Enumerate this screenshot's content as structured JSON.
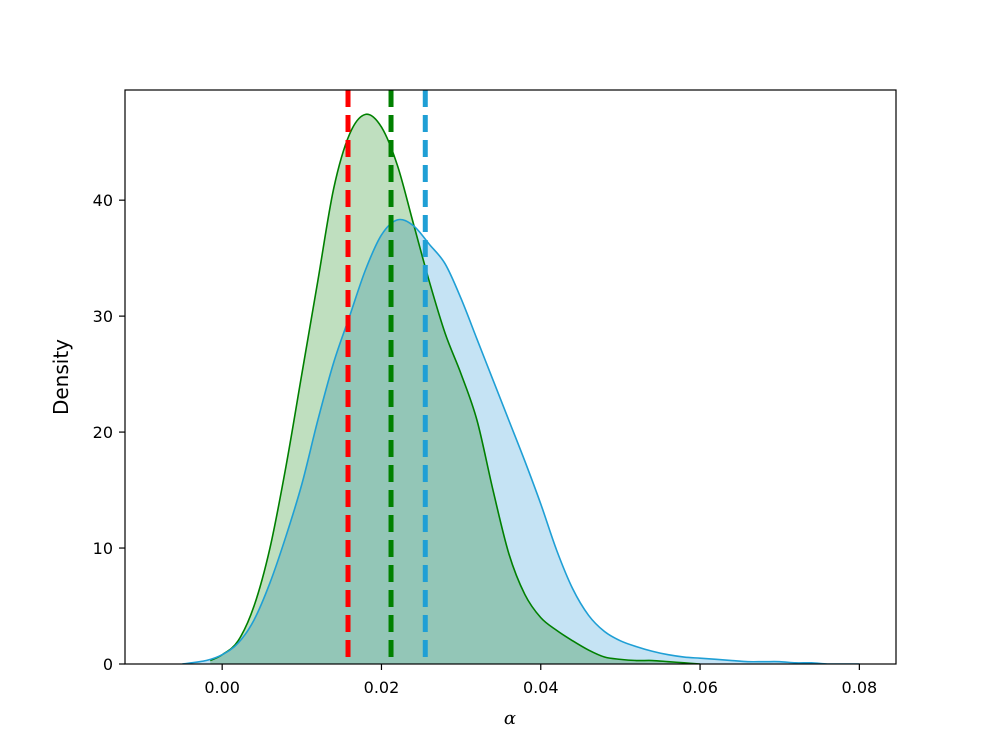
{
  "chart_data": {
    "type": "area",
    "title": "",
    "xlabel": "α",
    "ylabel": "Density",
    "xlim": [
      -0.0122,
      0.0846
    ],
    "ylim": [
      0,
      49.5
    ],
    "grid": false,
    "legend": "none",
    "xticks": [
      0.0,
      0.02,
      0.04,
      0.06,
      0.08
    ],
    "xtick_labels": [
      "0.00",
      "0.02",
      "0.04",
      "0.06",
      "0.08"
    ],
    "yticks": [
      0,
      10,
      20,
      30,
      40
    ],
    "ytick_labels": [
      "0",
      "10",
      "20",
      "30",
      "40"
    ],
    "series": [
      {
        "color": "#008000",
        "fill": "#bfdfbf",
        "x": [
          -0.0015,
          0.0,
          0.002,
          0.004,
          0.006,
          0.008,
          0.01,
          0.012,
          0.014,
          0.016,
          0.018,
          0.02,
          0.022,
          0.024,
          0.026,
          0.028,
          0.03,
          0.032,
          0.034,
          0.036,
          0.038,
          0.04,
          0.042,
          0.044,
          0.046,
          0.048,
          0.05,
          0.052,
          0.054,
          0.056,
          0.058,
          0.06
        ],
        "y": [
          0.3,
          0.8,
          2.0,
          5.0,
          10.0,
          17.0,
          25.0,
          33.0,
          41.0,
          45.7,
          47.4,
          46.3,
          43.0,
          38.0,
          33.0,
          28.5,
          25.0,
          21.0,
          15.0,
          9.5,
          6.0,
          4.0,
          2.9,
          2.0,
          1.2,
          0.6,
          0.4,
          0.3,
          0.3,
          0.2,
          0.1,
          0.0
        ]
      },
      {
        "color": "#1f9fd5",
        "fill": "#c5e3f4",
        "x": [
          -0.005,
          -0.002,
          0.0,
          0.002,
          0.004,
          0.006,
          0.008,
          0.01,
          0.012,
          0.014,
          0.016,
          0.018,
          0.02,
          0.022,
          0.024,
          0.026,
          0.028,
          0.03,
          0.032,
          0.034,
          0.036,
          0.038,
          0.04,
          0.042,
          0.044,
          0.046,
          0.048,
          0.05,
          0.052,
          0.054,
          0.056,
          0.058,
          0.06,
          0.062,
          0.064,
          0.066,
          0.068,
          0.07,
          0.072,
          0.074,
          0.076,
          0.078,
          0.08
        ],
        "y": [
          0.0,
          0.3,
          0.8,
          1.8,
          3.8,
          7.0,
          11.0,
          15.5,
          21.0,
          26.0,
          30.0,
          34.0,
          37.0,
          38.3,
          37.8,
          36.2,
          34.5,
          31.5,
          28.0,
          24.5,
          21.0,
          17.5,
          13.8,
          9.8,
          6.5,
          4.2,
          2.8,
          2.0,
          1.5,
          1.1,
          0.8,
          0.6,
          0.5,
          0.4,
          0.3,
          0.2,
          0.2,
          0.2,
          0.1,
          0.1,
          0.0,
          0.0,
          0.0
        ]
      }
    ],
    "vlines": [
      {
        "x": 0.0158,
        "color": "#ff0000"
      },
      {
        "x": 0.0212,
        "color": "#008000"
      },
      {
        "x": 0.0255,
        "color": "#1f9fd5"
      }
    ]
  }
}
